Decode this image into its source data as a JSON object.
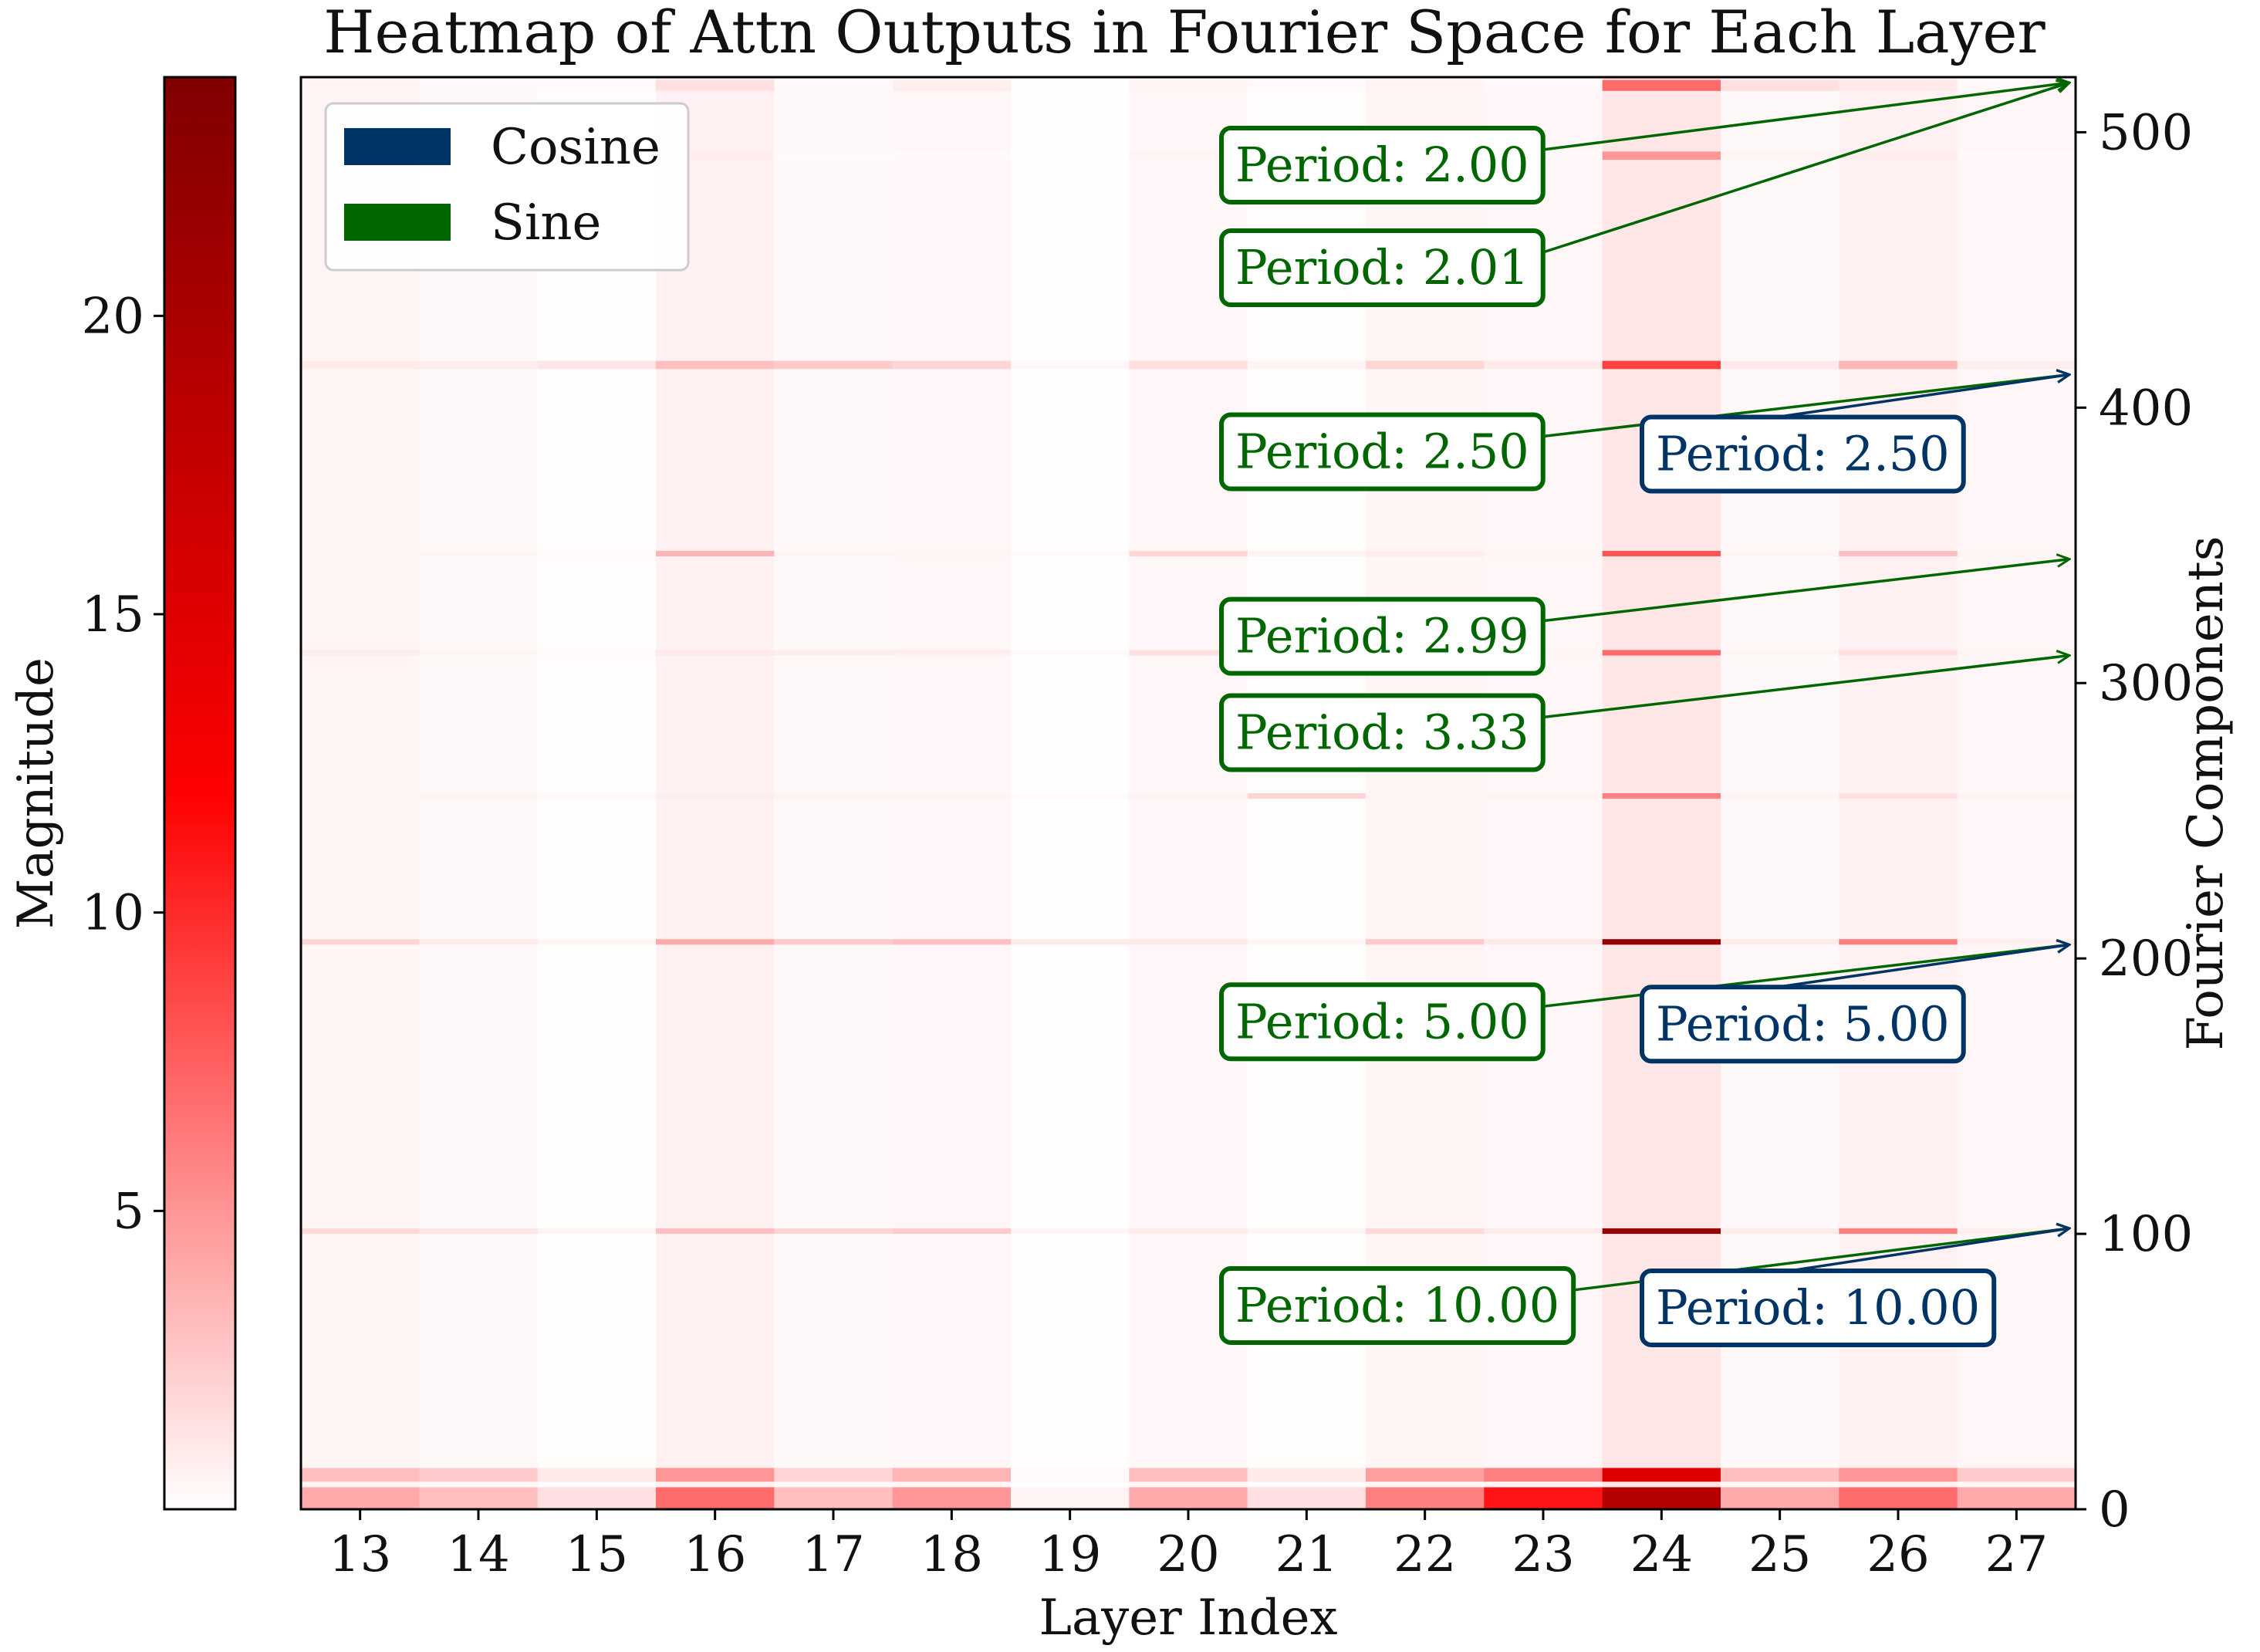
{
  "chart_data": {
    "type": "heatmap",
    "title": "Heatmap of Attn Outputs in Fourier Space for Each Layer",
    "xlabel": "Layer Index",
    "ylabel": "Fourier Components",
    "colorbar_label": "Magnitude",
    "x_categories": [
      "13",
      "14",
      "15",
      "16",
      "17",
      "18",
      "19",
      "20",
      "21",
      "22",
      "23",
      "24",
      "25",
      "26",
      "27"
    ],
    "ylim": [
      0,
      520
    ],
    "y_ticks": [
      0,
      100,
      200,
      300,
      400,
      500
    ],
    "colorbar_range": [
      0,
      24
    ],
    "colorbar_ticks": [
      5,
      10,
      15,
      20
    ],
    "colormap": [
      "#ffffff",
      "#ff0000",
      "#800000"
    ],
    "layer_base_intensity": [
      0.06,
      0.04,
      0.02,
      0.08,
      0.04,
      0.05,
      0.01,
      0.05,
      0.02,
      0.06,
      0.05,
      0.14,
      0.04,
      0.08,
      0.05
    ],
    "bands": [
      {
        "y": 0,
        "width": 8,
        "values": [
          4.0,
          3.0,
          1.5,
          7.0,
          3.0,
          5.0,
          0.5,
          4.0,
          1.5,
          6.0,
          11.0,
          19.0,
          4.0,
          7.0,
          4.0
        ]
      },
      {
        "y": 10,
        "width": 5,
        "values": [
          3.0,
          2.5,
          1.0,
          5.0,
          2.0,
          3.5,
          0.3,
          3.0,
          1.0,
          4.5,
          6.0,
          15.0,
          3.0,
          5.0,
          2.5
        ]
      },
      {
        "y": 100,
        "width": 2,
        "values": [
          1.8,
          1.2,
          0.5,
          3.0,
          2.0,
          2.5,
          0.5,
          1.0,
          0.5,
          1.8,
          1.0,
          22.0,
          1.0,
          6.0,
          0.8
        ]
      },
      {
        "y": 205,
        "width": 2,
        "values": [
          2.0,
          1.0,
          0.5,
          4.0,
          2.5,
          3.0,
          1.0,
          1.0,
          0.5,
          2.5,
          1.0,
          22.0,
          1.0,
          6.0,
          0.8
        ]
      },
      {
        "y": 258,
        "width": 2,
        "values": [
          0.5,
          0.5,
          0.3,
          0.8,
          0.5,
          0.5,
          0.2,
          0.5,
          2.0,
          0.5,
          0.5,
          6.0,
          0.5,
          1.5,
          0.5
        ]
      },
      {
        "y": 310,
        "width": 2,
        "values": [
          0.8,
          0.5,
          0.3,
          1.0,
          0.8,
          0.8,
          0.2,
          1.5,
          0.5,
          1.0,
          0.5,
          7.0,
          0.5,
          1.5,
          0.5
        ]
      },
      {
        "y": 346,
        "width": 2,
        "values": [
          0.5,
          0.5,
          0.3,
          3.5,
          0.5,
          0.5,
          0.2,
          2.0,
          0.5,
          0.8,
          0.5,
          8.0,
          0.5,
          3.0,
          0.5
        ]
      },
      {
        "y": 414,
        "width": 3,
        "values": [
          1.0,
          0.8,
          1.2,
          3.0,
          2.5,
          2.0,
          0.4,
          1.5,
          0.5,
          2.0,
          1.0,
          9.0,
          1.0,
          3.5,
          0.8
        ]
      },
      {
        "y": 490,
        "width": 3,
        "values": [
          0.5,
          0.3,
          0.3,
          0.8,
          0.3,
          0.3,
          0.1,
          0.5,
          0.3,
          0.5,
          0.3,
          5.0,
          0.5,
          0.8,
          0.3
        ]
      },
      {
        "y": 515,
        "width": 4,
        "values": [
          0.5,
          0.3,
          0.3,
          1.5,
          0.3,
          0.8,
          0.1,
          0.5,
          0.3,
          0.5,
          0.3,
          7.0,
          1.5,
          1.0,
          0.3
        ]
      }
    ],
    "legend": {
      "placement": "upper-left",
      "entries": [
        {
          "label": "Cosine",
          "color": "#003366"
        },
        {
          "label": "Sine",
          "color": "#006600"
        }
      ]
    },
    "annotations": [
      {
        "text": "Period: 2.00",
        "series": "Sine",
        "target_y": 518
      },
      {
        "text": "Period: 2.01",
        "series": "Sine",
        "target_y": 518
      },
      {
        "text": "Period: 2.50",
        "series": "Sine",
        "target_y": 412
      },
      {
        "text": "Period: 2.50",
        "series": "Cosine",
        "target_y": 412
      },
      {
        "text": "Period: 2.99",
        "series": "Sine",
        "target_y": 345
      },
      {
        "text": "Period: 3.33",
        "series": "Sine",
        "target_y": 310
      },
      {
        "text": "Period: 5.00",
        "series": "Sine",
        "target_y": 205
      },
      {
        "text": "Period: 5.00",
        "series": "Cosine",
        "target_y": 205
      },
      {
        "text": "Period: 10.00",
        "series": "Sine",
        "target_y": 102
      },
      {
        "text": "Period: 10.00",
        "series": "Cosine",
        "target_y": 102
      }
    ]
  }
}
